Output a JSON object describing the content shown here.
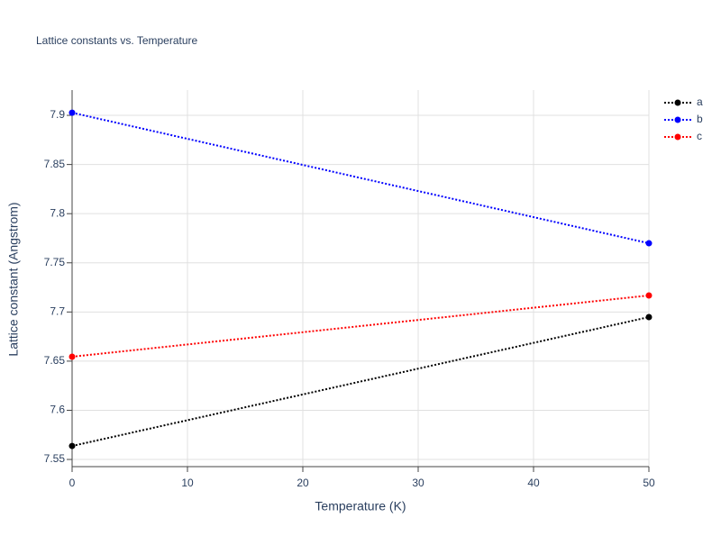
{
  "chart_data": {
    "type": "line",
    "title": "Lattice constants vs. Temperature",
    "x_label": "Temperature (K)",
    "y_label": "Lattice constant (Angstrom)",
    "x": [
      0,
      50
    ],
    "series": [
      {
        "name": "a",
        "color": "#000000",
        "values": [
          7.5637,
          7.6948
        ]
      },
      {
        "name": "b",
        "color": "#0000ff",
        "values": [
          7.9027,
          7.7699
        ]
      },
      {
        "name": "c",
        "color": "#ff0000",
        "values": [
          7.6545,
          7.7168
        ]
      }
    ],
    "xlim": [
      0,
      50
    ],
    "xticks": [
      0,
      10,
      20,
      30,
      40,
      50
    ],
    "ylim": [
      7.5427,
      7.9257
    ],
    "yticks": [
      7.55,
      7.6,
      7.65,
      7.7,
      7.75,
      7.8,
      7.85,
      7.9
    ],
    "grid": true,
    "legend": "top-right"
  }
}
